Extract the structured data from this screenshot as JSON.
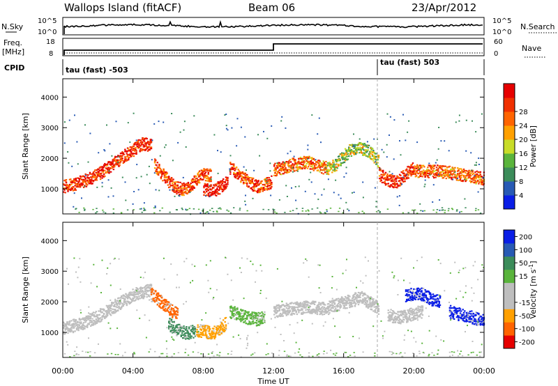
{
  "header": {
    "station": "Wallops Island (fitACF)",
    "beam": "Beam 06",
    "date": "23/Apr/2012"
  },
  "panels": {
    "nsky_label": "N.Sky",
    "nsky_ticks": [
      "10^5",
      "10^0"
    ],
    "nsearch_label": "N.Search",
    "nsearch_ticks": [
      "10^5",
      "10^0"
    ],
    "freq_label": "Freq.",
    "freq_unit": "[MHz]",
    "freq_ticks": [
      "18",
      "8"
    ],
    "nave_label": "Nave",
    "nave_ticks": [
      "60",
      "0"
    ],
    "cpid_label": "CPID",
    "cpid_modes": [
      "tau (fast) -503",
      "tau (fast) 503"
    ]
  },
  "colors": {
    "power": [
      "#0a1ee6",
      "#285ab4",
      "#3c8c5a",
      "#5ab43c",
      "#c8dc28",
      "#ffa000",
      "#ff6400",
      "#f03000",
      "#e60000"
    ],
    "velocity": [
      "#e60000",
      "#ff6400",
      "#ffa000",
      "#bebebe",
      "#bebebe",
      "#5ab43c",
      "#3c8c5a",
      "#285ab4",
      "#0a1ee6"
    ]
  },
  "chart_data": [
    {
      "type": "heatmap",
      "name": "power",
      "xlabel": "Time UT",
      "ylabel": "Slant Range [km]",
      "colorbar_label": "Power [dB]",
      "colorbar_ticks": [
        "4",
        "8",
        "12",
        "16",
        "20",
        "24",
        "28"
      ],
      "x_ticks": [
        "00:00",
        "04:00",
        "08:00",
        "12:00",
        "16:00",
        "20:00",
        "00:00"
      ],
      "y_ticks": [
        "1000",
        "2000",
        "3000",
        "4000"
      ],
      "xlim": [
        0,
        24
      ],
      "ylim": [
        180,
        4600
      ],
      "scatter_bands": [
        {
          "t": [
            0.0,
            0.5,
            1.0,
            1.5,
            2.0,
            2.5,
            3.0,
            3.5,
            4.0,
            4.5,
            5.0
          ],
          "range": [
            1100,
            1150,
            1250,
            1350,
            1500,
            1700,
            1900,
            2100,
            2300,
            2500,
            2450
          ],
          "power": 26
        },
        {
          "t": [
            5.2,
            5.8,
            6.3,
            6.8,
            7.2,
            7.6,
            8.0,
            8.4
          ],
          "range": [
            1800,
            1400,
            1100,
            1000,
            1100,
            1350,
            1500,
            1450
          ],
          "power": 24
        },
        {
          "t": [
            8.0,
            8.5,
            9.0,
            9.4
          ],
          "range": [
            1000,
            950,
            1100,
            1300
          ],
          "power": 28
        },
        {
          "t": [
            9.5,
            10.0,
            10.5,
            11.0,
            11.5,
            11.9
          ],
          "range": [
            1700,
            1500,
            1250,
            1100,
            1150,
            1250
          ],
          "power": 24
        },
        {
          "t": [
            12.0,
            12.5,
            13.0,
            13.5,
            14.0,
            14.5,
            15.0
          ],
          "range": [
            1650,
            1700,
            1800,
            1850,
            1900,
            1750,
            1700
          ],
          "power": 22
        },
        {
          "t": [
            15.0,
            15.5,
            16.0,
            16.5,
            17.0,
            17.5,
            18.0
          ],
          "range": [
            1650,
            1800,
            2100,
            2350,
            2350,
            2200,
            1900
          ],
          "power": 14
        },
        {
          "t": [
            18.0,
            18.5,
            19.0,
            19.5,
            20.0
          ],
          "range": [
            1500,
            1300,
            1250,
            1500,
            1700
          ],
          "power": 26
        },
        {
          "t": [
            20.0,
            21.0,
            22.0,
            23.0,
            24.0
          ],
          "range": [
            1600,
            1600,
            1550,
            1450,
            1350
          ],
          "power": 22
        }
      ]
    },
    {
      "type": "heatmap",
      "name": "velocity",
      "xlabel": "Time UT",
      "ylabel": "Slant Range [km]",
      "colorbar_label": "Velocity [m s^-1]",
      "colorbar_ticks": [
        "-200",
        "-100",
        "-50",
        "-15",
        "15",
        "50",
        "100",
        "200"
      ],
      "x_ticks": [
        "00:00",
        "04:00",
        "08:00",
        "12:00",
        "16:00",
        "20:00",
        "00:00"
      ],
      "y_ticks": [
        "1000",
        "2000",
        "3000",
        "4000"
      ],
      "xlim": [
        0,
        24
      ],
      "ylim": [
        180,
        4600
      ],
      "scatter_bands": [
        {
          "t": [
            0.0,
            1.0,
            2.0,
            3.0,
            4.0,
            5.0
          ],
          "range": [
            1150,
            1300,
            1550,
            1900,
            2250,
            2400
          ],
          "velocity": 0
        },
        {
          "t": [
            5.0,
            5.5,
            6.0,
            6.5
          ],
          "range": [
            2300,
            2050,
            1800,
            1600
          ],
          "velocity": -100
        },
        {
          "t": [
            6.0,
            6.5,
            7.0,
            7.5
          ],
          "range": [
            1300,
            1100,
            1000,
            1050
          ],
          "velocity": 100
        },
        {
          "t": [
            7.6,
            8.0,
            8.5,
            9.0,
            9.3
          ],
          "range": [
            1100,
            1050,
            1000,
            1150,
            1350
          ],
          "velocity": -70
        },
        {
          "t": [
            9.5,
            10.0,
            10.5,
            11.0,
            11.5
          ],
          "range": [
            1700,
            1600,
            1500,
            1450,
            1500
          ],
          "velocity": 40
        },
        {
          "t": [
            12.0,
            13.0,
            14.0,
            15.0,
            16.0,
            17.0,
            18.0
          ],
          "range": [
            1700,
            1800,
            1850,
            1800,
            2000,
            2150,
            1800
          ],
          "velocity": 0
        },
        {
          "t": [
            18.5,
            19.0,
            19.5,
            20.0,
            20.5
          ],
          "range": [
            1600,
            1500,
            1550,
            1650,
            1700
          ],
          "velocity": 0
        },
        {
          "t": [
            19.5,
            20.0,
            20.5,
            21.0,
            21.5
          ],
          "range": [
            2200,
            2300,
            2250,
            2100,
            2000
          ],
          "velocity": 200
        },
        {
          "t": [
            22.0,
            23.0,
            24.0
          ],
          "range": [
            1700,
            1550,
            1400
          ],
          "velocity": 150
        }
      ]
    }
  ]
}
